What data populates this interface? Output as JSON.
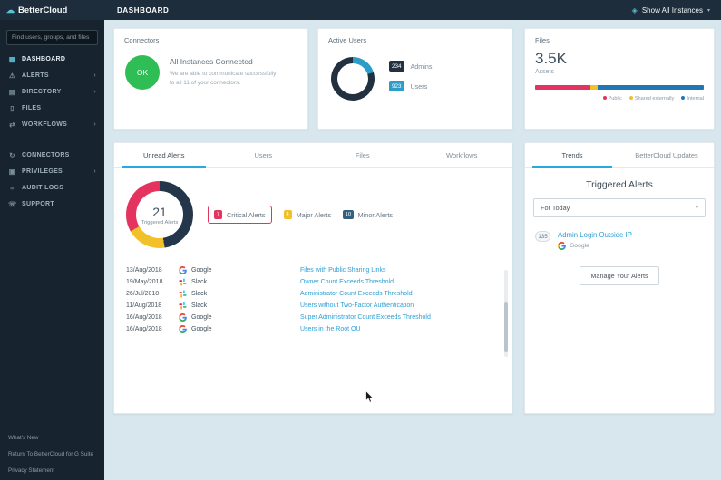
{
  "app": {
    "brand": "BetterCloud",
    "page_title": "DASHBOARD",
    "instances_label": "Show All Instances"
  },
  "sidebar": {
    "search_placeholder": "Find users, groups, and files",
    "items": [
      {
        "label": "DASHBOARD",
        "icon": "dashboard-icon",
        "chevron": false
      },
      {
        "label": "ALERTS",
        "icon": "alerts-icon",
        "chevron": true
      },
      {
        "label": "DIRECTORY",
        "icon": "directory-icon",
        "chevron": true
      },
      {
        "label": "FILES",
        "icon": "files-icon",
        "chevron": false
      },
      {
        "label": "WORKFLOWS",
        "icon": "workflows-icon",
        "chevron": true
      },
      {
        "label": "CONNECTORS",
        "icon": "connectors-icon",
        "chevron": false
      },
      {
        "label": "PRIVILEGES",
        "icon": "privileges-icon",
        "chevron": true
      },
      {
        "label": "AUDIT LOGS",
        "icon": "audit-logs-icon",
        "chevron": false
      },
      {
        "label": "SUPPORT",
        "icon": "support-icon",
        "chevron": false
      }
    ],
    "footer_links": [
      "What's New",
      "Return To BetterCloud for G Suite",
      "Privacy Statement"
    ]
  },
  "connectors_card": {
    "title": "Connectors",
    "status_label": "OK",
    "headline": "All Instances Connected",
    "description": "We are able to communicate successfully to all 11 of your connectors."
  },
  "active_users_card": {
    "title": "Active Users",
    "admins_count": "234",
    "admins_label": "Admins",
    "users_count": "923",
    "users_label": "Users"
  },
  "files_card": {
    "title": "Files",
    "total": "3.5K",
    "total_label": "Assets",
    "legend": [
      {
        "label": "Public",
        "color": "#e4335f"
      },
      {
        "label": "Shared externally",
        "color": "#f2c028"
      },
      {
        "label": "Internal",
        "color": "#2077b4"
      }
    ]
  },
  "alerts_panel": {
    "tabs": [
      "Unread Alerts",
      "Users",
      "Files",
      "Workflows"
    ],
    "active_tab": "Unread Alerts",
    "donut_total": "21",
    "donut_label": "Triggered Alerts",
    "legend": [
      {
        "count": "7",
        "label": "Critical Alerts",
        "color": "#e4335f",
        "highlighted": true
      },
      {
        "count": "4",
        "label": "Major Alerts",
        "color": "#f2c028",
        "highlighted": false
      },
      {
        "count": "10",
        "label": "Minor Alerts",
        "color": "#33607f",
        "highlighted": false
      }
    ],
    "rows": [
      {
        "date": "13/Aug/2018",
        "service": "Google",
        "alert": "Files with Public Sharing Links"
      },
      {
        "date": "19/May/2018",
        "service": "Slack",
        "alert": "Owner Count Exceeds Threshold"
      },
      {
        "date": "26/Jul/2018",
        "service": "Slack",
        "alert": "Administrator Count Exceeds Threshold"
      },
      {
        "date": "11/Aug/2018",
        "service": "Slack",
        "alert": "Users without Two-Factor Authentication"
      },
      {
        "date": "16/Aug/2018",
        "service": "Google",
        "alert": "Super Administrator Count Exceeds Threshold"
      },
      {
        "date": "16/Aug/2018",
        "service": "Google",
        "alert": "Users in the Root OU"
      }
    ]
  },
  "trends_panel": {
    "tabs": [
      "Trends",
      "BetterCloud Updates"
    ],
    "active_tab": "Trends",
    "heading": "Triggered Alerts",
    "filter_value": "For Today",
    "items": [
      {
        "count": "135",
        "title": "Admin Login Outside IP",
        "service": "Google"
      }
    ],
    "button_label": "Manage Your Alerts"
  },
  "chart_data": [
    {
      "type": "pie",
      "title": "Active Users",
      "labels": [
        "Admins",
        "Users"
      ],
      "values": [
        234,
        923
      ],
      "colors": [
        "#2d9dc8",
        "#223140"
      ]
    },
    {
      "type": "bar",
      "title": "Files by exposure",
      "categories": [
        "Public",
        "Shared externally",
        "Internal"
      ],
      "values": [
        33,
        4,
        63
      ],
      "unit": "percent of 3.5K assets",
      "colors": [
        "#e4335f",
        "#f2c028",
        "#2077b4"
      ]
    },
    {
      "type": "pie",
      "title": "Triggered Alerts",
      "labels": [
        "Minor Alerts",
        "Major Alerts",
        "Critical Alerts"
      ],
      "values": [
        10,
        4,
        7
      ],
      "colors": [
        "#24374a",
        "#f2c028",
        "#e4335f"
      ],
      "center_label": "21 Triggered Alerts"
    }
  ]
}
